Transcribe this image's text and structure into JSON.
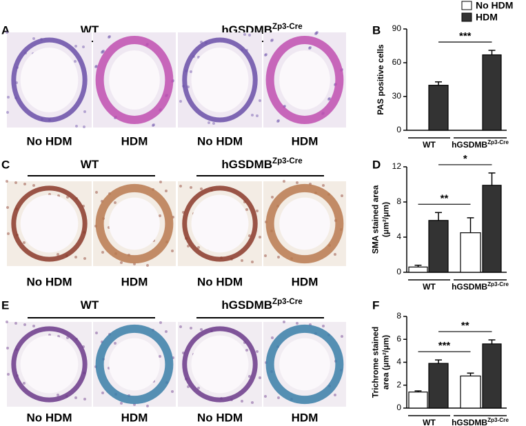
{
  "panels": [
    {
      "letter": "A",
      "groups": [
        {
          "label": "WT"
        },
        {
          "label": "hGSDMB",
          "superscript": "Zp3-Cre"
        }
      ],
      "captions": [
        "No HDM",
        "HDM",
        "No HDM",
        "HDM"
      ]
    },
    {
      "letter": "C",
      "groups": [
        {
          "label": "WT"
        },
        {
          "label": "hGSDMB",
          "superscript": "Zp3-Cre"
        }
      ],
      "captions": [
        "No HDM",
        "HDM",
        "No HDM",
        "HDM"
      ]
    },
    {
      "letter": "E",
      "groups": [
        {
          "label": "WT"
        },
        {
          "label": "hGSDMB",
          "superscript": "Zp3-Cre"
        }
      ],
      "captions": [
        "No HDM",
        "HDM",
        "No HDM",
        "HDM"
      ]
    }
  ],
  "legend": [
    {
      "name": "No HDM",
      "color": "#ffffff"
    },
    {
      "name": "HDM",
      "color": "#333333"
    }
  ],
  "chart_data": [
    {
      "type": "bar",
      "letter": "B",
      "ylabel": [
        "PAS positive cells"
      ],
      "categories": [
        "WT",
        "hGSDMB"
      ],
      "category_superscripts": [
        null,
        "Zp3-Cre"
      ],
      "ylim": [
        0,
        90
      ],
      "yticks": [
        0,
        30,
        60,
        90
      ],
      "series": [
        {
          "color": "#ffffff",
          "values": [
            0,
            0
          ],
          "errors": [
            0,
            0
          ]
        },
        {
          "color": "#333333",
          "values": [
            40,
            67
          ],
          "errors": [
            3,
            4
          ],
          "significance": "***"
        }
      ]
    },
    {
      "type": "bar",
      "letter": "D",
      "ylabel": [
        "SMA stained area",
        "(μm²/μm)"
      ],
      "categories": [
        "WT",
        "hGSDMB"
      ],
      "category_superscripts": [
        null,
        "Zp3-Cre"
      ],
      "ylim": [
        0,
        12
      ],
      "yticks": [
        0,
        4,
        8,
        12
      ],
      "series": [
        {
          "color": "#ffffff",
          "values": [
            0.6,
            4.5
          ],
          "errors": [
            0.2,
            1.7
          ],
          "significance": "**"
        },
        {
          "color": "#333333",
          "values": [
            5.9,
            9.9
          ],
          "errors": [
            0.9,
            1.4
          ],
          "significance": "*"
        }
      ]
    },
    {
      "type": "bar",
      "letter": "F",
      "ylabel": [
        "Trichrome stained",
        "area (μm²/μm)"
      ],
      "categories": [
        "WT",
        "hGSDMB"
      ],
      "category_superscripts": [
        null,
        "Zp3-Cre"
      ],
      "ylim": [
        0,
        8
      ],
      "yticks": [
        0,
        2,
        4,
        6,
        8
      ],
      "series": [
        {
          "color": "#ffffff",
          "values": [
            1.4,
            2.8
          ],
          "errors": [
            0.1,
            0.25
          ],
          "significance": "***"
        },
        {
          "color": "#333333",
          "values": [
            3.9,
            5.6
          ],
          "errors": [
            0.3,
            0.35
          ],
          "significance": "**"
        }
      ]
    }
  ]
}
